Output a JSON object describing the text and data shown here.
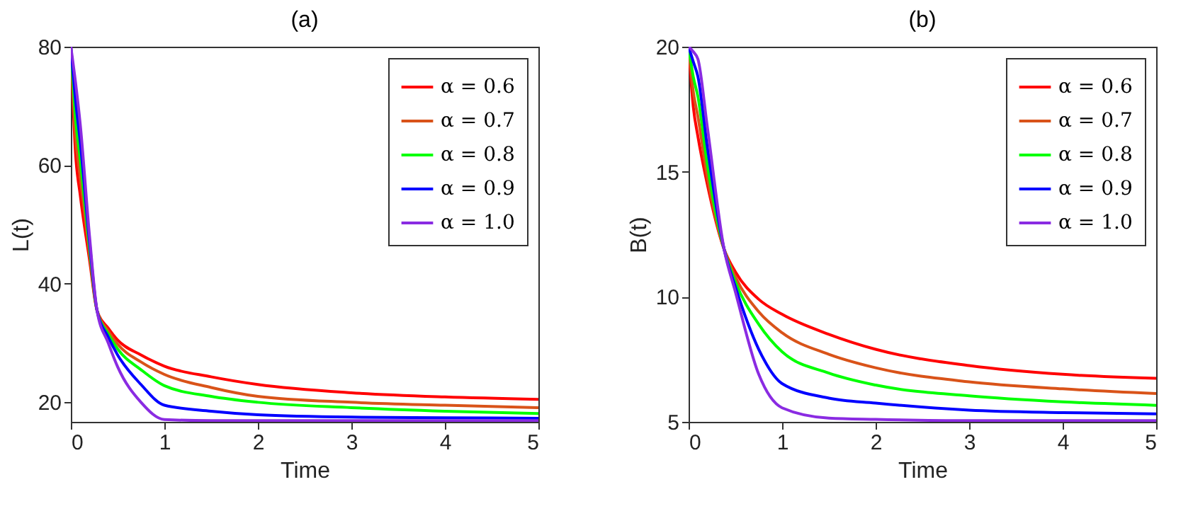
{
  "chart_data": [
    {
      "type": "line",
      "title": "(a)",
      "xlabel": "Time",
      "ylabel": "L(t)",
      "xlim": [
        0,
        5
      ],
      "xticks": [
        0,
        1,
        2,
        3,
        4,
        5
      ],
      "ylim": [
        16.7,
        80
      ],
      "yticks": [
        20,
        40,
        60,
        80
      ],
      "grid": false,
      "legend": "top right",
      "marker": "none",
      "line_style": "solid",
      "x": [
        0,
        0.05,
        0.1,
        0.2,
        0.28,
        0.4,
        0.5,
        0.75,
        1,
        1.5,
        2,
        3,
        4,
        5
      ],
      "series": [
        {
          "name": "α = 0.6",
          "color": "#ff0000",
          "values": [
            80,
            62,
            55,
            44,
            35.5,
            32.5,
            30.5,
            28,
            26.1,
            24.3,
            23.0,
            21.6,
            20.9,
            20.5
          ]
        },
        {
          "name": "α = 0.7",
          "color": "#d95319",
          "values": [
            80,
            65,
            58,
            45,
            35.5,
            32,
            29.8,
            26.8,
            24.7,
            22.5,
            21.0,
            20.0,
            19.5,
            19.1
          ]
        },
        {
          "name": "α = 0.8",
          "color": "#00ff00",
          "values": [
            80,
            68,
            61,
            46,
            35.5,
            31.5,
            29,
            25.5,
            22.8,
            21.0,
            20.0,
            19.1,
            18.5,
            18.1
          ]
        },
        {
          "name": "α = 0.9",
          "color": "#0000ff",
          "values": [
            80,
            71,
            64,
            47,
            35.5,
            31,
            28,
            23,
            19.5,
            18.5,
            17.9,
            17.5,
            17.4,
            17.3
          ]
        },
        {
          "name": "α = 1.0",
          "color": "#8a2be2",
          "values": [
            80,
            74,
            67,
            48,
            35.5,
            30,
            26,
            20,
            17.1,
            16.9,
            16.9,
            16.9,
            16.9,
            16.9
          ]
        }
      ]
    },
    {
      "type": "line",
      "title": "(b)",
      "xlabel": "Time",
      "ylabel": "B(t)",
      "xlim": [
        0,
        5
      ],
      "xticks": [
        0,
        1,
        2,
        3,
        4,
        5
      ],
      "ylim": [
        5,
        20
      ],
      "yticks": [
        5,
        10,
        15,
        20
      ],
      "grid": false,
      "legend": "top right",
      "marker": "none",
      "line_style": "solid",
      "x": [
        0,
        0.05,
        0.1,
        0.2,
        0.38,
        0.5,
        0.75,
        1,
        1.5,
        2,
        3,
        4,
        5
      ],
      "series": [
        {
          "name": "α = 0.6",
          "color": "#ff0000",
          "values": [
            20,
            17.6,
            16.4,
            14.5,
            11.9,
            11.0,
            9.9,
            9.3,
            8.5,
            7.9,
            7.25,
            6.9,
            6.74
          ]
        },
        {
          "name": "α = 0.7",
          "color": "#d95319",
          "values": [
            20,
            18.2,
            17.2,
            14.8,
            11.9,
            10.8,
            9.4,
            8.56,
            7.7,
            7.16,
            6.6,
            6.32,
            6.13
          ]
        },
        {
          "name": "α = 0.8",
          "color": "#00ff00",
          "values": [
            20,
            18.8,
            18.0,
            15.3,
            11.9,
            10.6,
            8.9,
            7.8,
            6.95,
            6.47,
            6.04,
            5.8,
            5.66
          ]
        },
        {
          "name": "α = 0.9",
          "color": "#0000ff",
          "values": [
            20,
            19.4,
            18.8,
            16.0,
            11.9,
            10.4,
            7.9,
            6.53,
            5.95,
            5.75,
            5.47,
            5.37,
            5.32
          ]
        },
        {
          "name": "α = 1.0",
          "color": "#8a2be2",
          "values": [
            20,
            19.8,
            19.5,
            16.8,
            11.9,
            10.2,
            6.9,
            5.56,
            5.15,
            5.1,
            5.05,
            5.05,
            5.05
          ]
        }
      ]
    }
  ]
}
